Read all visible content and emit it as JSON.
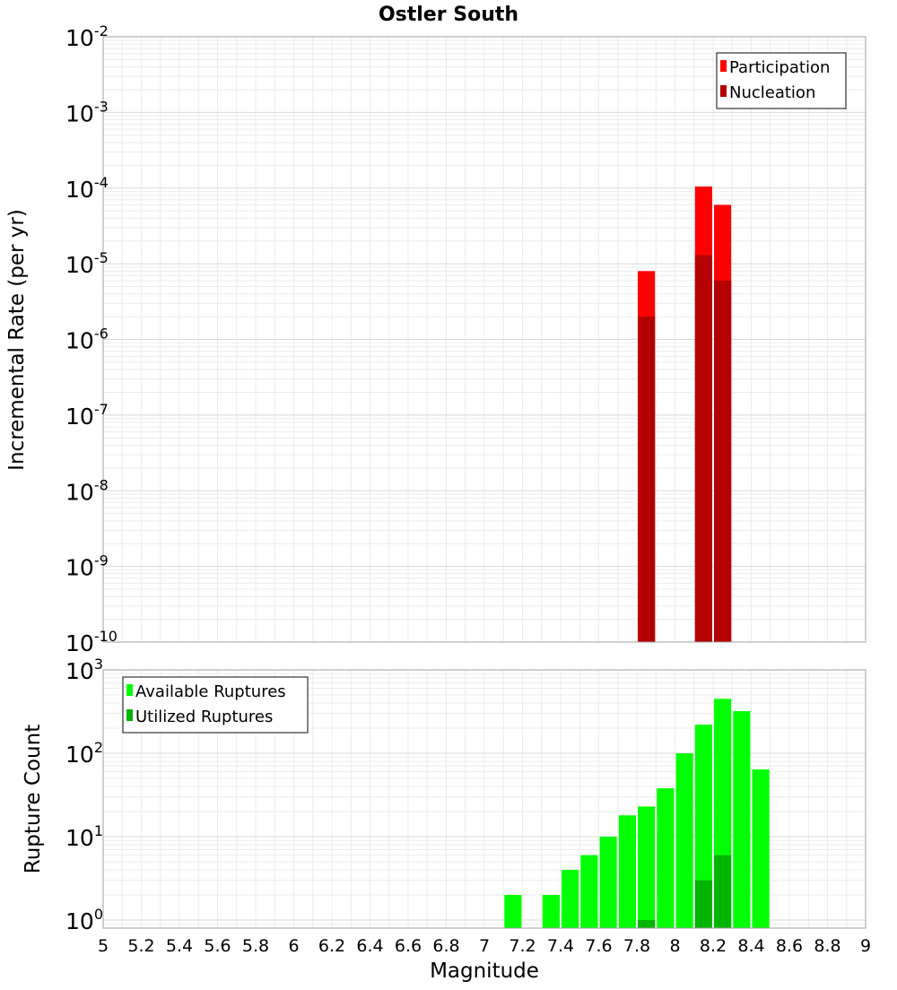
{
  "chart_data": [
    {
      "type": "bar",
      "title": "Ostler South",
      "ylabel": "Incremental Rate (per yr)",
      "xlabel": "",
      "xlim": [
        5,
        9
      ],
      "ylim": [
        1e-10,
        0.01
      ],
      "yscale": "log",
      "grid": true,
      "ytick_exponents": [
        "-10",
        "-9",
        "-8",
        "-7",
        "-6",
        "-5",
        "-4",
        "-3",
        "-2"
      ],
      "legend_position": "top-right",
      "bar_width": 0.09,
      "series": [
        {
          "name": "Participation",
          "color": "#ff0000",
          "x": [
            7.85,
            8.15,
            8.25
          ],
          "values": [
            8e-06,
            0.000105,
            6e-05
          ]
        },
        {
          "name": "Nucleation",
          "color": "#b40000",
          "x": [
            7.85,
            8.15,
            8.25
          ],
          "values": [
            2e-06,
            1.3e-05,
            6e-06
          ]
        }
      ]
    },
    {
      "type": "bar",
      "title": "",
      "ylabel": "Rupture Count",
      "xlabel": "Magnitude",
      "xlim": [
        5,
        9
      ],
      "ylim": [
        0.8,
        1000
      ],
      "yscale": "log",
      "grid": true,
      "ytick_exponents": [
        "0",
        "1",
        "2",
        "3"
      ],
      "xtick_labels": [
        "5",
        "5.2",
        "5.4",
        "5.6",
        "5.8",
        "6",
        "6.2",
        "6.4",
        "6.6",
        "6.8",
        "7",
        "7.2",
        "7.4",
        "7.6",
        "7.8",
        "8",
        "8.2",
        "8.4",
        "8.6",
        "8.8",
        "9"
      ],
      "legend_position": "top-left",
      "bar_width": 0.09,
      "series": [
        {
          "name": "Available Ruptures",
          "color": "#00ff00",
          "x": [
            7.15,
            7.35,
            7.45,
            7.55,
            7.65,
            7.75,
            7.85,
            7.95,
            8.05,
            8.15,
            8.25,
            8.35,
            8.45
          ],
          "values": [
            2,
            2,
            4,
            6,
            10,
            18,
            23,
            38,
            100,
            220,
            450,
            320,
            64
          ]
        },
        {
          "name": "Utilized Ruptures",
          "color": "#00b400",
          "x": [
            7.85,
            8.15,
            8.25
          ],
          "values": [
            1,
            3,
            6
          ]
        }
      ]
    }
  ]
}
